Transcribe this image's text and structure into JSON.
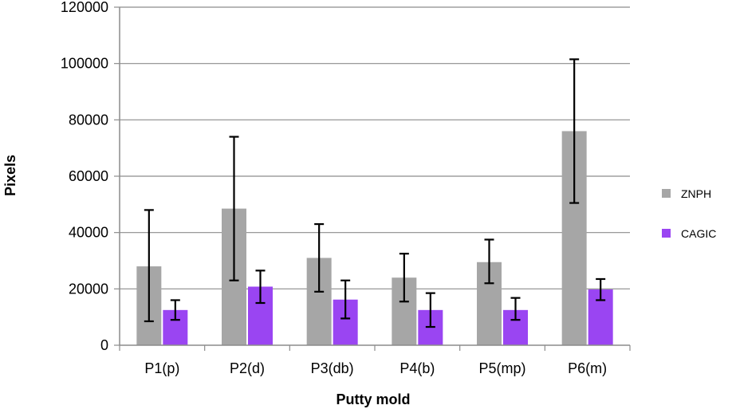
{
  "chart_data": {
    "type": "bar",
    "title": "",
    "xlabel": "Putty mold",
    "ylabel": "Pixels",
    "ylim": [
      0,
      120000
    ],
    "yticks": [
      0,
      20000,
      40000,
      60000,
      80000,
      100000,
      120000
    ],
    "ytick_labels": [
      "0",
      "20000",
      "40000",
      "60000",
      "80000",
      "100000",
      "120000"
    ],
    "grid": true,
    "legend_position": "right",
    "categories": [
      "P1(p)",
      "P2(d)",
      "P3(db)",
      "P4(b)",
      "P5(mp)",
      "P6(m)"
    ],
    "series": [
      {
        "name": "ZNPH",
        "color": "#a6a6a6",
        "values": [
          28000,
          48500,
          31000,
          24000,
          29500,
          76000
        ],
        "error_low": [
          8500,
          23000,
          19000,
          15500,
          22000,
          50500
        ],
        "error_high": [
          48000,
          74000,
          43000,
          32500,
          37500,
          101500
        ]
      },
      {
        "name": "CAGIC",
        "color": "#9a45f2",
        "values": [
          12500,
          20800,
          16200,
          12500,
          12500,
          19800
        ],
        "error_low": [
          9000,
          15000,
          9500,
          6500,
          9000,
          16000
        ],
        "error_high": [
          16000,
          26500,
          23000,
          18500,
          16800,
          23500
        ]
      }
    ]
  }
}
